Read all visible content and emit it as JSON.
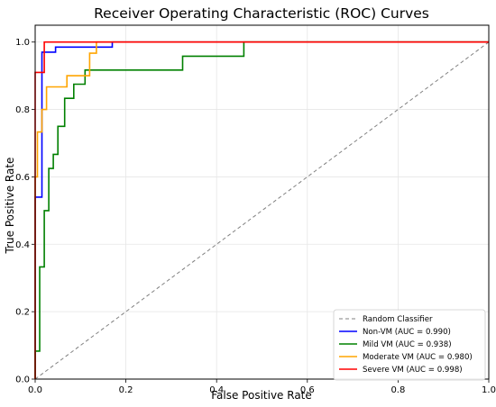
{
  "chart_data": {
    "type": "line",
    "title": "Receiver Operating Characteristic (ROC) Curves",
    "xlabel": "False Positive Rate",
    "ylabel": "True Positive Rate",
    "xlim": [
      0,
      1
    ],
    "ylim": [
      0,
      1.05
    ],
    "x_ticks": [
      "0.0",
      "0.2",
      "0.4",
      "0.6",
      "0.8",
      "1.0"
    ],
    "y_ticks": [
      "0.0",
      "0.2",
      "0.4",
      "0.6",
      "0.8",
      "1.0"
    ],
    "grid": true,
    "legend_position": "lower-right",
    "series": [
      {
        "name": "Random Classifier",
        "color": "#808080",
        "dashed": true,
        "points": [
          [
            0,
            0
          ],
          [
            1,
            1
          ]
        ]
      },
      {
        "name": "Non-VM (AUC = 0.990)",
        "color": "#0000ff",
        "points": [
          [
            0,
            0
          ],
          [
            0,
            0.54
          ],
          [
            0.015,
            0.54
          ],
          [
            0.015,
            0.97
          ],
          [
            0.045,
            0.97
          ],
          [
            0.045,
            0.985
          ],
          [
            0.17,
            0.985
          ],
          [
            0.17,
            1.0
          ],
          [
            1,
            1.0
          ]
        ]
      },
      {
        "name": "Mild VM (AUC = 0.938)",
        "color": "#008000",
        "points": [
          [
            0,
            0
          ],
          [
            0,
            0.083
          ],
          [
            0.01,
            0.083
          ],
          [
            0.01,
            0.333
          ],
          [
            0.02,
            0.333
          ],
          [
            0.02,
            0.5
          ],
          [
            0.03,
            0.5
          ],
          [
            0.03,
            0.625
          ],
          [
            0.04,
            0.625
          ],
          [
            0.04,
            0.667
          ],
          [
            0.05,
            0.667
          ],
          [
            0.05,
            0.75
          ],
          [
            0.065,
            0.75
          ],
          [
            0.065,
            0.833
          ],
          [
            0.085,
            0.833
          ],
          [
            0.085,
            0.875
          ],
          [
            0.11,
            0.875
          ],
          [
            0.11,
            0.917
          ],
          [
            0.325,
            0.917
          ],
          [
            0.325,
            0.958
          ],
          [
            0.46,
            0.958
          ],
          [
            0.46,
            1.0
          ],
          [
            1,
            1.0
          ]
        ]
      },
      {
        "name": "Moderate VM (AUC = 0.980)",
        "color": "#ffa500",
        "points": [
          [
            0,
            0
          ],
          [
            0,
            0.6
          ],
          [
            0.005,
            0.6
          ],
          [
            0.005,
            0.733
          ],
          [
            0.015,
            0.733
          ],
          [
            0.015,
            0.8
          ],
          [
            0.025,
            0.8
          ],
          [
            0.025,
            0.867
          ],
          [
            0.07,
            0.867
          ],
          [
            0.07,
            0.9
          ],
          [
            0.12,
            0.9
          ],
          [
            0.12,
            0.967
          ],
          [
            0.135,
            0.967
          ],
          [
            0.135,
            1.0
          ],
          [
            1,
            1.0
          ]
        ]
      },
      {
        "name": "Severe VM (AUC = 0.998)",
        "color": "#ff0000",
        "points": [
          [
            0,
            0
          ],
          [
            0,
            0.91
          ],
          [
            0.02,
            0.91
          ],
          [
            0.02,
            1.0
          ],
          [
            1,
            1.0
          ]
        ]
      }
    ]
  }
}
